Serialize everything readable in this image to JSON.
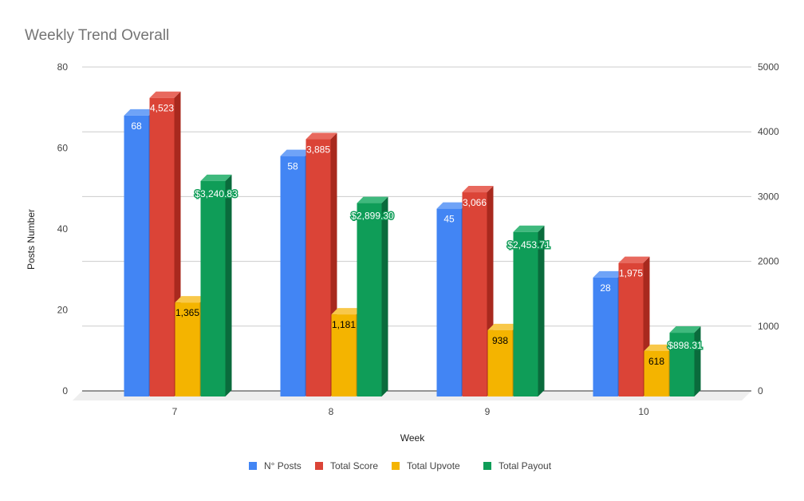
{
  "chart_data": {
    "type": "bar",
    "title": "Weekly Trend Overall",
    "xlabel": "Week",
    "ylabel": "Posts Number",
    "categories": [
      "7",
      "8",
      "9",
      "10"
    ],
    "y_left": {
      "min": 0,
      "max": 80,
      "ticks": [
        "0",
        "20",
        "40",
        "60",
        "80"
      ]
    },
    "y_right": {
      "min": 0,
      "max": 5000,
      "ticks": [
        "0",
        "1000",
        "2000",
        "3000",
        "4000",
        "5000"
      ]
    },
    "grid": true,
    "three_d": true,
    "legend_position": "bottom",
    "series": [
      {
        "name": "N° Posts",
        "axis": "left",
        "color": "#4285f4",
        "side_color": "#2f63c7",
        "top_color": "#6fa3f7",
        "label_color": "#ffffff",
        "values": [
          68,
          58,
          45,
          28
        ],
        "labels": [
          "68",
          "58",
          "45",
          "28"
        ]
      },
      {
        "name": "Total Score",
        "axis": "right",
        "color": "#db4437",
        "side_color": "#a8291e",
        "top_color": "#e8695e",
        "label_color": "#ffffff",
        "values": [
          4523,
          3885,
          3066,
          1975
        ],
        "labels": [
          "4,523",
          "3,885",
          "3,066",
          "1,975"
        ]
      },
      {
        "name": "Total Upvote",
        "axis": "right",
        "color": "#f4b400",
        "side_color": "#c28c00",
        "top_color": "#f8c84a",
        "label_color": "#000000",
        "values": [
          1365,
          1181,
          938,
          618
        ],
        "labels": [
          "1,365",
          "1,181",
          "938",
          "618"
        ]
      },
      {
        "name": "Total Payout",
        "axis": "right",
        "color": "#0f9d58",
        "side_color": "#0a6b3c",
        "top_color": "#3fb97d",
        "label_color": "#ffffff",
        "values": [
          3240.83,
          2899.3,
          2453.71,
          898.31
        ],
        "labels": [
          "$3,240.83",
          "$2,899.30",
          "$2,453.71",
          "$898.31"
        ]
      }
    ]
  }
}
